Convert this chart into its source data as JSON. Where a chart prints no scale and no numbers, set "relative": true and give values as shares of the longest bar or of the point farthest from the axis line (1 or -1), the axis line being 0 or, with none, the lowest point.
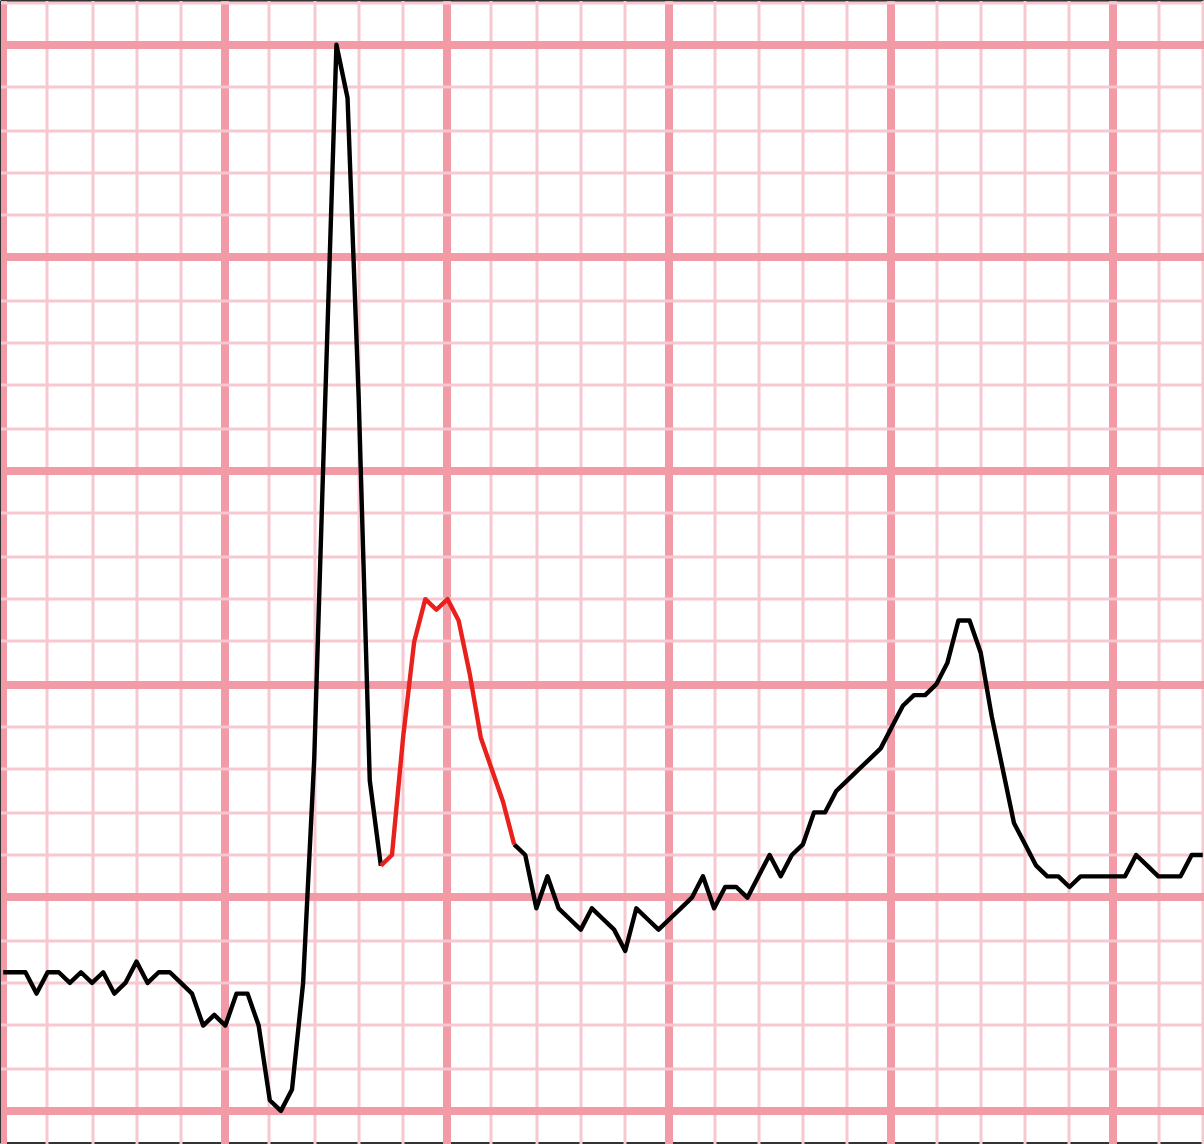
{
  "chart_data": {
    "type": "line",
    "relative": true,
    "grid": true,
    "marker": "none",
    "line_style": "solid",
    "categories": [
      null,
      null,
      null,
      null,
      null,
      null,
      null,
      null,
      null,
      null,
      null,
      null,
      null,
      null,
      null,
      null,
      null,
      null,
      null,
      null,
      null,
      null,
      null,
      null,
      null,
      null,
      null,
      null,
      null,
      null,
      null,
      null,
      null,
      null,
      null,
      null,
      null,
      null,
      null,
      null,
      null,
      null,
      null,
      null,
      null,
      null,
      null,
      null,
      null,
      null,
      null,
      null,
      null,
      null,
      null,
      null,
      null,
      null,
      null,
      null,
      null,
      null,
      null,
      null,
      null,
      null,
      null,
      null,
      null,
      null,
      null,
      null,
      null,
      null,
      null,
      null,
      null,
      null,
      null,
      null,
      null,
      null,
      null,
      null,
      null,
      null,
      null,
      null,
      null,
      null,
      null,
      null,
      null,
      null,
      null,
      null,
      null,
      null,
      null,
      null,
      null,
      null,
      null,
      null,
      null,
      null,
      null,
      null,
      null
    ],
    "series": [
      {
        "color": "#000000",
        "values": [
          0.13,
          0.13,
          0.13,
          0.11,
          0.13,
          0.13,
          0.12,
          0.13,
          0.12,
          0.13,
          0.11,
          0.12,
          0.14,
          0.12,
          0.13,
          0.13,
          0.12,
          0.11,
          0.08,
          0.09,
          0.08,
          0.11,
          0.11,
          0.08,
          0.01,
          0,
          0.02,
          0.12,
          0.33,
          0.67,
          1,
          0.95,
          0.67,
          0.31,
          0.23,
          null,
          null,
          null,
          null,
          null,
          null,
          null,
          null,
          null,
          null,
          null,
          0.25,
          0.24,
          0.19,
          0.22,
          0.19,
          0.18,
          0.17,
          0.19,
          0.18,
          0.17,
          0.15,
          0.19,
          0.18,
          0.17,
          0.18,
          0.19,
          0.2,
          0.22,
          0.19,
          0.21,
          0.21,
          0.2,
          0.22,
          0.24,
          0.22,
          0.24,
          0.25,
          0.28,
          0.28,
          0.3,
          0.31,
          0.32,
          0.33,
          0.34,
          0.36,
          0.38,
          0.39,
          0.39,
          0.4,
          0.42,
          0.46,
          0.46,
          0.43,
          0.37,
          0.32,
          0.27,
          0.25,
          0.23,
          0.22,
          0.22,
          0.21,
          0.22,
          0.22,
          0.22,
          0.22,
          0.22,
          0.24,
          0.23,
          0.22,
          0.22,
          0.22,
          0.24,
          0.24
        ]
      },
      {
        "color": "#e8211d",
        "values": [
          null,
          null,
          null,
          null,
          null,
          null,
          null,
          null,
          null,
          null,
          null,
          null,
          null,
          null,
          null,
          null,
          null,
          null,
          null,
          null,
          null,
          null,
          null,
          null,
          null,
          null,
          null,
          null,
          null,
          null,
          null,
          null,
          null,
          null,
          0.23,
          0.24,
          0.35,
          0.44,
          0.48,
          0.47,
          0.48,
          0.46,
          0.41,
          0.35,
          0.32,
          0.29,
          0.25,
          null,
          null,
          null,
          null,
          null,
          null,
          null,
          null,
          null,
          null,
          null,
          null,
          null,
          null,
          null,
          null,
          null,
          null,
          null,
          null,
          null,
          null,
          null,
          null,
          null,
          null,
          null,
          null,
          null,
          null,
          null,
          null,
          null,
          null,
          null,
          null,
          null,
          null,
          null,
          null,
          null,
          null,
          null,
          null,
          null,
          null,
          null,
          null,
          null,
          null,
          null,
          null,
          null,
          null,
          null,
          null,
          null,
          null,
          null,
          null,
          null,
          null
        ]
      }
    ]
  }
}
